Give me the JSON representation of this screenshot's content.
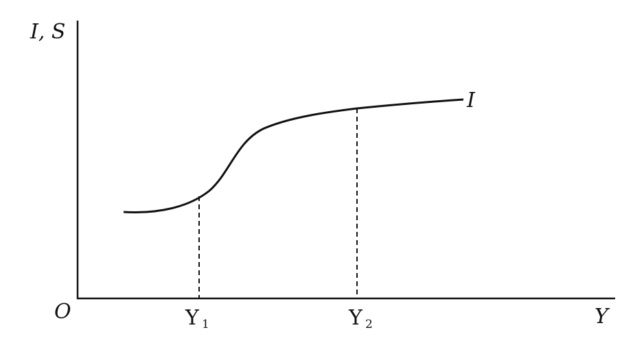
{
  "diagram": {
    "y_axis_label": "I, S",
    "x_axis_label": "Y",
    "origin_label": "O",
    "curve_label": "I",
    "markers": [
      {
        "label": "Y",
        "subscript": "1"
      },
      {
        "label": "Y",
        "subscript": "2"
      }
    ],
    "colors": {
      "line": "#111111",
      "background": "#ffffff"
    }
  }
}
